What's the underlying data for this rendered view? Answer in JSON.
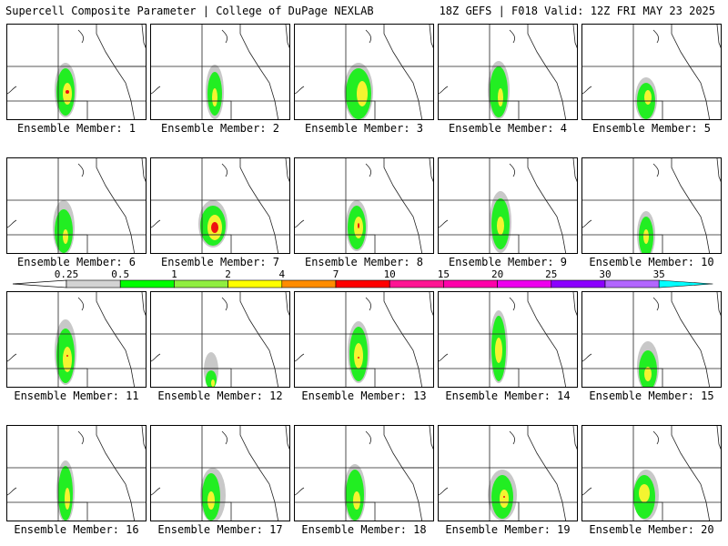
{
  "header": {
    "left": "Supercell Composite Parameter | College of DuPage NEXLAB",
    "right": "18Z GEFS | F018 Valid: 12Z FRI MAY 23 2025"
  },
  "panels": [
    {
      "label": "Ensemble Member: 1"
    },
    {
      "label": "Ensemble Member: 2"
    },
    {
      "label": "Ensemble Member: 3"
    },
    {
      "label": "Ensemble Member: 4"
    },
    {
      "label": "Ensemble Member: 5"
    },
    {
      "label": "Ensemble Member: 6"
    },
    {
      "label": "Ensemble Member: 7"
    },
    {
      "label": "Ensemble Member: 8"
    },
    {
      "label": "Ensemble Member: 9"
    },
    {
      "label": "Ensemble Member: 10"
    },
    {
      "label": "Ensemble Member: 11"
    },
    {
      "label": "Ensemble Member: 12"
    },
    {
      "label": "Ensemble Member: 13"
    },
    {
      "label": "Ensemble Member: 14"
    },
    {
      "label": "Ensemble Member: 15"
    },
    {
      "label": "Ensemble Member: 16"
    },
    {
      "label": "Ensemble Member: 17"
    },
    {
      "label": "Ensemble Member: 18"
    },
    {
      "label": "Ensemble Member: 19"
    },
    {
      "label": "Ensemble Member: 20"
    }
  ],
  "colorbar": {
    "labels": [
      "0.25",
      "0.5",
      "1",
      "2",
      "4",
      "7",
      "10",
      "15",
      "20",
      "25",
      "30",
      "35"
    ],
    "colors": [
      "#d3d3d3",
      "#00ff00",
      "#90ee40",
      "#ffff00",
      "#ff8c00",
      "#ff0000",
      "#ff1493",
      "#ff00aa",
      "#ee00ee",
      "#8b00ff",
      "#b266ff",
      "#00ffff"
    ]
  }
}
